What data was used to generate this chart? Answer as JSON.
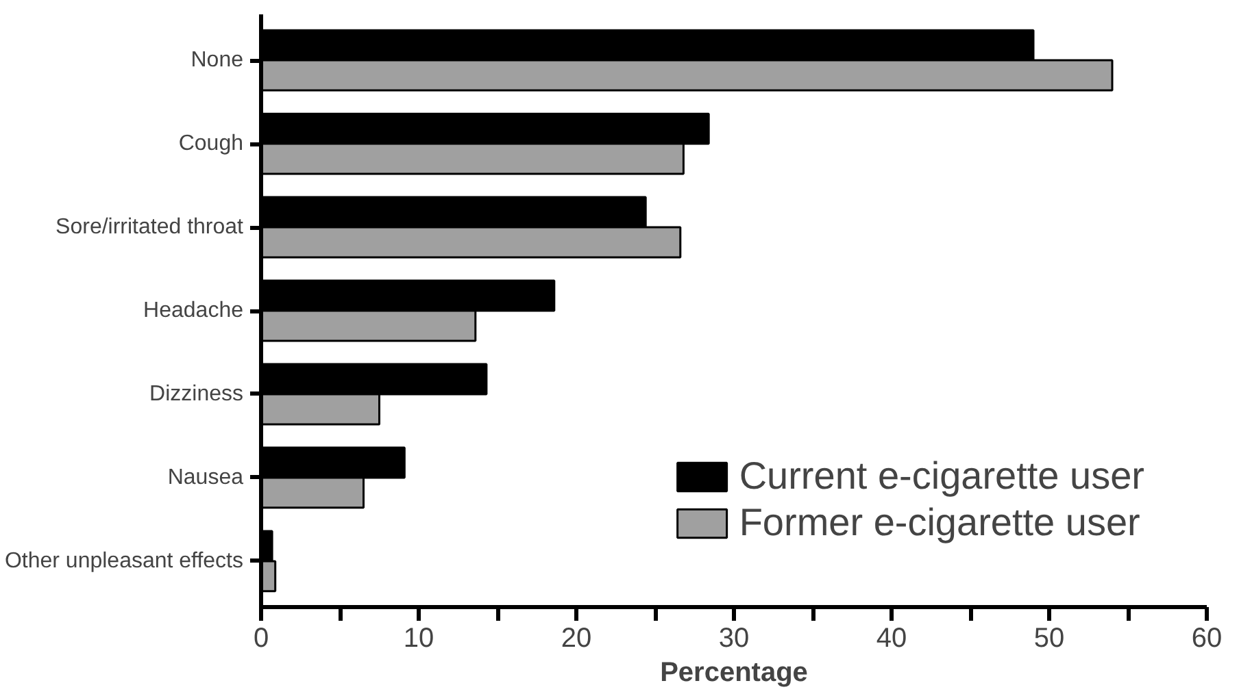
{
  "chart_data": {
    "type": "bar",
    "orientation": "horizontal",
    "xlabel": "Percentage",
    "categories": [
      "None",
      "Cough",
      "Sore/irritated throat",
      "Headache",
      "Dizziness",
      "Nausea",
      "Other unpleasant effects"
    ],
    "series": [
      {
        "name": "Current e-cigarette user",
        "color": "#000000",
        "values": [
          49.0,
          28.4,
          24.4,
          18.6,
          14.3,
          9.1,
          0.7
        ]
      },
      {
        "name": "Former e-cigarette user",
        "color": "#a0a0a0",
        "values": [
          54.0,
          26.8,
          26.6,
          13.6,
          7.5,
          6.5,
          0.9
        ]
      }
    ],
    "xlim": [
      0,
      60
    ],
    "xticks": [
      0,
      {
        "value": 5,
        "label": null
      },
      10,
      {
        "value": 15,
        "label": null
      },
      20,
      {
        "value": 25,
        "label": null
      },
      30,
      {
        "value": 35,
        "label": null
      },
      40,
      {
        "value": 45,
        "label": null
      },
      50,
      {
        "value": 55,
        "label": null
      },
      60
    ],
    "grid": false,
    "legend": "bottom right"
  }
}
